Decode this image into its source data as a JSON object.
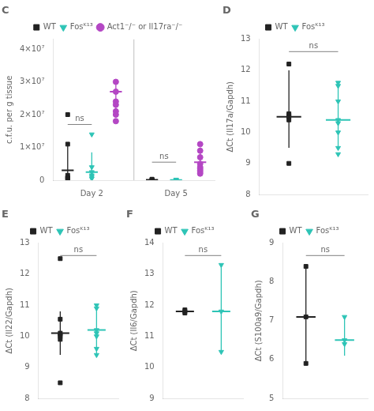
{
  "chart_data": [
    {
      "type": "scatter",
      "title": "C",
      "ylabel": "c.f.u. per g tissue",
      "categories": [
        "Day 2",
        "Day 5"
      ],
      "ylim": [
        0,
        43000000
      ],
      "yticks": [
        0,
        {
          "value": 10000000,
          "label": "1×10⁷"
        },
        {
          "value": 20000000,
          "label": "2×10⁷"
        },
        {
          "value": 30000000,
          "label": "3×10⁷"
        },
        {
          "value": 40000000,
          "label": "4×10⁷"
        }
      ],
      "grid": false,
      "legend": "top",
      "series": [
        {
          "name": "WT",
          "color": "#222222",
          "marker": "square",
          "values": [
            [
              20000000,
              11000000,
              1500000,
              500000,
              800000,
              400000
            ],
            [
              300000,
              150000,
              100000
            ]
          ],
          "mean": [
            3000000,
            100000
          ],
          "err_lo": [
            3000000,
            100000
          ],
          "err_hi": [
            8500000,
            150000
          ]
        },
        {
          "name": "Fosᴷ¹³",
          "color": "#2ec4b6",
          "marker": "triangle_down",
          "values": [
            [
              14000000,
              4000000,
              2500000,
              1500000,
              1000000,
              500000
            ],
            [
              200000,
              100000,
              50000
            ]
          ],
          "mean": [
            2500000,
            80000
          ],
          "err_lo": [
            2500000,
            80000
          ],
          "err_hi": [
            6000000,
            120000
          ]
        },
        {
          "name": "Act1⁻/⁻ or Il17ra⁻/⁻",
          "color": "#b447c4",
          "marker": "circle",
          "values": [
            [
              30000000,
              27000000,
              24000000,
              23000000,
              21000000,
              20000000,
              18000000
            ],
            [
              11000000,
              9000000,
              7000000,
              5000000,
              4000000,
              3500000,
              3000000,
              2500000,
              2000000
            ]
          ],
          "mean": [
            27000000,
            5500000
          ],
          "err_lo": [
            6500000,
            3500000
          ],
          "err_hi": [
            3500000,
            4500000
          ]
        }
      ],
      "annotations": [
        {
          "text": "ns",
          "category": "Day 2",
          "between": [
            "WT",
            "Fosᴷ¹³"
          ],
          "y": 17000000
        },
        {
          "text": "ns",
          "category": "Day 5",
          "between": [
            "WT",
            "Fosᴷ¹³"
          ],
          "y": 5500000
        }
      ]
    },
    {
      "type": "scatter",
      "title": "D",
      "ylabel": "ΔCt (Il17a/Gapdh)",
      "ylim": [
        8,
        13
      ],
      "yticks": [
        8,
        9,
        10,
        11,
        12,
        13
      ],
      "grid": false,
      "legend": "top",
      "tick_labels": "y",
      "series": [
        {
          "name": "WT",
          "color": "#222222",
          "marker": "square",
          "values": [
            9.0,
            10.4,
            10.5,
            10.55,
            10.6,
            12.2
          ],
          "mean": 10.5,
          "err_lo": 1.0,
          "err_hi": 1.5
        },
        {
          "name": "Fosᴷ¹³",
          "color": "#2ec4b6",
          "marker": "triangle_down",
          "values": [
            9.3,
            9.5,
            10.0,
            10.3,
            10.4,
            11.0,
            11.5,
            11.6
          ],
          "mean": 10.4,
          "err_lo": 0.9,
          "err_hi": 1.2
        }
      ],
      "annotations": [
        {
          "text": "ns",
          "between": [
            "WT",
            "Fosᴷ¹³"
          ],
          "y": 12.6
        }
      ]
    },
    {
      "type": "scatter",
      "title": "E",
      "ylabel": "ΔCt (Il22/Gapdh)",
      "ylim": [
        8,
        13
      ],
      "yticks": [
        8,
        9,
        10,
        11,
        12,
        13
      ],
      "grid": false,
      "legend": "top",
      "tick_labels": "y",
      "series": [
        {
          "name": "WT",
          "color": "#222222",
          "marker": "square",
          "values": [
            8.5,
            9.9,
            10.0,
            10.05,
            10.1,
            10.55,
            12.5
          ],
          "mean": 10.1,
          "err_lo": 0.7,
          "err_hi": 0.7
        },
        {
          "name": "Fosᴷ¹³",
          "color": "#2ec4b6",
          "marker": "triangle_down",
          "values": [
            9.4,
            9.6,
            10.0,
            10.1,
            10.2,
            10.9,
            11.0
          ],
          "mean": 10.2,
          "err_lo": 0.8,
          "err_hi": 0.8
        }
      ],
      "annotations": [
        {
          "text": "ns",
          "between": [
            "WT",
            "Fosᴷ¹³"
          ],
          "y": 12.6
        }
      ]
    },
    {
      "type": "scatter",
      "title": "F",
      "ylabel": "ΔCt (Il6/Gapdh)",
      "ylim": [
        9,
        14
      ],
      "yticks": [
        9,
        10,
        11,
        12,
        13,
        14
      ],
      "grid": false,
      "legend": "top",
      "tick_labels": "y",
      "series": [
        {
          "name": "WT",
          "color": "#222222",
          "marker": "square",
          "values": [
            11.75,
            11.8,
            11.85
          ],
          "mean": 11.8,
          "err_lo": 0.05,
          "err_hi": 0.05
        },
        {
          "name": "Fosᴷ¹³",
          "color": "#2ec4b6",
          "marker": "triangle_down",
          "values": [
            10.5,
            11.8,
            13.3
          ],
          "mean": 11.8,
          "err_lo": 1.3,
          "err_hi": 1.5
        }
      ],
      "annotations": [
        {
          "text": "ns",
          "between": [
            "WT",
            "Fosᴷ¹³"
          ],
          "y": 13.6
        }
      ]
    },
    {
      "type": "scatter",
      "title": "G",
      "ylabel": "ΔCt (S100a9/Gapdh)",
      "ylim": [
        5,
        9
      ],
      "yticks": [
        5,
        6,
        7,
        8,
        9
      ],
      "grid": false,
      "legend": "top",
      "tick_labels": "y",
      "series": [
        {
          "name": "WT",
          "color": "#222222",
          "marker": "square",
          "values": [
            5.9,
            7.1,
            8.4
          ],
          "mean": 7.1,
          "err_lo": 1.2,
          "err_hi": 1.3
        },
        {
          "name": "Fosᴷ¹³",
          "color": "#2ec4b6",
          "marker": "triangle_down",
          "values": [
            6.4,
            6.5,
            7.1
          ],
          "mean": 6.5,
          "err_lo": 0.4,
          "err_hi": 0.6
        }
      ],
      "annotations": [
        {
          "text": "ns",
          "between": [
            "WT",
            "Fosᴷ¹³"
          ],
          "y": 8.68
        }
      ]
    }
  ]
}
